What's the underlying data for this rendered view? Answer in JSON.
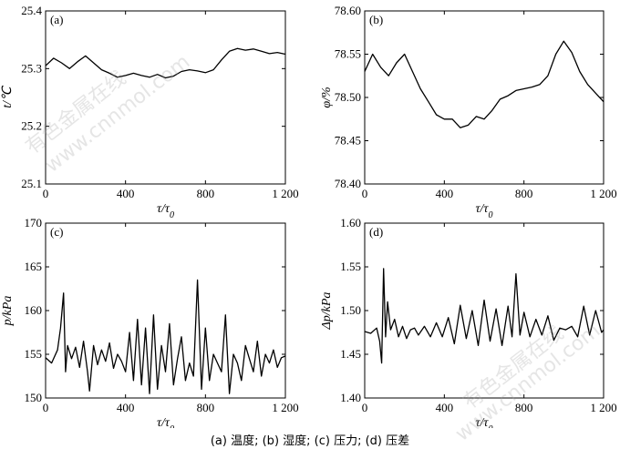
{
  "caption": "(a) 温度; (b) 湿度; (c) 压力; (d) 压差",
  "watermarks": [
    "有色金属在线",
    "www.cnnmol.com",
    "有色金属在线",
    "www.cnnmol.com"
  ],
  "chart_data": [
    {
      "type": "line",
      "panel_label": "(a)",
      "ylabel": "t/℃",
      "xlabel": "τ/τ0",
      "xlim": [
        0,
        1200
      ],
      "ylim": [
        25.1,
        25.4
      ],
      "xticks": [
        "0",
        "400",
        "800",
        "1 200"
      ],
      "yticks": [
        "25.1",
        "25.2",
        "25.3",
        "25.4"
      ],
      "series": [
        {
          "x": [
            0,
            40,
            80,
            120,
            160,
            200,
            240,
            280,
            320,
            360,
            400,
            440,
            480,
            520,
            560,
            600,
            640,
            680,
            720,
            760,
            800,
            840,
            880,
            920,
            960,
            1000,
            1040,
            1080,
            1120,
            1160,
            1200
          ],
          "values": [
            25.305,
            25.318,
            25.31,
            25.3,
            25.312,
            25.322,
            25.31,
            25.298,
            25.292,
            25.285,
            25.288,
            25.292,
            25.288,
            25.285,
            25.29,
            25.284,
            25.287,
            25.295,
            25.298,
            25.296,
            25.293,
            25.298,
            25.315,
            25.33,
            25.335,
            25.332,
            25.334,
            25.33,
            25.326,
            25.328,
            25.325
          ]
        }
      ]
    },
    {
      "type": "line",
      "panel_label": "(b)",
      "ylabel": "φ/%",
      "xlabel": "τ/τ0",
      "xlim": [
        0,
        1200
      ],
      "ylim": [
        78.4,
        78.6
      ],
      "xticks": [
        "0",
        "400",
        "800",
        "1 200"
      ],
      "yticks": [
        "78.40",
        "78.45",
        "78.50",
        "78.55",
        "78.60"
      ],
      "series": [
        {
          "x": [
            0,
            40,
            80,
            120,
            160,
            200,
            240,
            280,
            320,
            360,
            400,
            440,
            480,
            520,
            560,
            600,
            640,
            680,
            720,
            760,
            800,
            840,
            880,
            920,
            960,
            1000,
            1040,
            1080,
            1120,
            1160,
            1200
          ],
          "values": [
            78.53,
            78.55,
            78.535,
            78.525,
            78.54,
            78.55,
            78.53,
            78.51,
            78.495,
            78.48,
            78.475,
            78.475,
            78.465,
            78.468,
            78.478,
            78.475,
            78.485,
            78.498,
            78.502,
            78.508,
            78.51,
            78.512,
            78.515,
            78.525,
            78.55,
            78.565,
            78.552,
            78.53,
            78.515,
            78.505,
            78.495
          ]
        }
      ]
    },
    {
      "type": "line",
      "panel_label": "(c)",
      "ylabel": "p/kPa",
      "xlabel": "τ/τ0",
      "xlim": [
        0,
        1200
      ],
      "ylim": [
        150,
        170
      ],
      "xticks": [
        "0",
        "400",
        "800",
        "1 200"
      ],
      "yticks": [
        "150",
        "155",
        "160",
        "165",
        "170"
      ],
      "series": [
        {
          "x": [
            0,
            30,
            60,
            75,
            90,
            100,
            110,
            130,
            150,
            170,
            190,
            210,
            220,
            240,
            260,
            280,
            300,
            320,
            340,
            360,
            380,
            400,
            420,
            440,
            460,
            480,
            500,
            520,
            540,
            560,
            580,
            600,
            620,
            640,
            660,
            680,
            700,
            720,
            740,
            760,
            780,
            800,
            820,
            840,
            860,
            880,
            900,
            920,
            940,
            960,
            980,
            1000,
            1020,
            1040,
            1060,
            1080,
            1100,
            1120,
            1140,
            1160,
            1180,
            1200
          ],
          "values": [
            154.6,
            154.0,
            155.5,
            158.0,
            162.0,
            153.0,
            156.0,
            154.5,
            155.8,
            153.5,
            156.5,
            153.0,
            150.8,
            156.0,
            153.8,
            155.5,
            154.2,
            156.3,
            153.4,
            155.0,
            154.2,
            153.0,
            157.5,
            152.0,
            159.0,
            151.5,
            158.0,
            150.5,
            159.5,
            151.0,
            156.0,
            153.0,
            158.5,
            151.5,
            154.5,
            157.0,
            152.0,
            154.0,
            152.5,
            163.5,
            151.0,
            158.0,
            152.0,
            155.0,
            154.0,
            153.0,
            159.5,
            150.5,
            155.0,
            154.0,
            152.0,
            156.0,
            154.5,
            153.0,
            156.5,
            152.5,
            155.0,
            154.0,
            155.5,
            153.5,
            154.6,
            154.8
          ]
        }
      ]
    },
    {
      "type": "line",
      "panel_label": "(d)",
      "ylabel": "Δp/kPa",
      "xlabel": "τ/τ0",
      "xlim": [
        0,
        1200
      ],
      "ylim": [
        1.4,
        1.6
      ],
      "xticks": [
        "0",
        "400",
        "800",
        "1 200"
      ],
      "yticks": [
        "1.40",
        "1.45",
        "1.50",
        "1.55",
        "1.60"
      ],
      "series": [
        {
          "x": [
            0,
            30,
            60,
            75,
            85,
            95,
            105,
            115,
            130,
            150,
            170,
            190,
            210,
            230,
            250,
            270,
            300,
            330,
            360,
            390,
            420,
            450,
            480,
            510,
            540,
            570,
            600,
            630,
            660,
            690,
            720,
            740,
            760,
            780,
            800,
            830,
            860,
            890,
            920,
            950,
            980,
            1010,
            1040,
            1070,
            1100,
            1130,
            1160,
            1190,
            1200
          ],
          "values": [
            1.476,
            1.474,
            1.48,
            1.465,
            1.44,
            1.548,
            1.47,
            1.51,
            1.478,
            1.49,
            1.47,
            1.482,
            1.468,
            1.478,
            1.48,
            1.472,
            1.482,
            1.47,
            1.486,
            1.47,
            1.492,
            1.462,
            1.506,
            1.468,
            1.5,
            1.46,
            1.512,
            1.465,
            1.502,
            1.46,
            1.505,
            1.47,
            1.542,
            1.472,
            1.498,
            1.47,
            1.49,
            1.472,
            1.494,
            1.466,
            1.48,
            1.478,
            1.482,
            1.47,
            1.505,
            1.472,
            1.5,
            1.475,
            1.478
          ]
        }
      ]
    }
  ]
}
